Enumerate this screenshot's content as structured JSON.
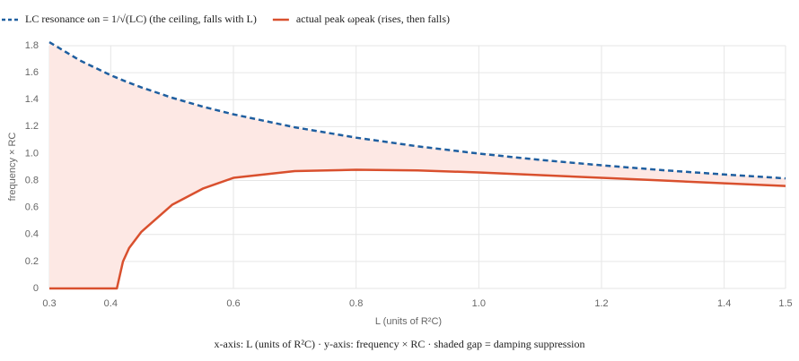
{
  "chart_data": {
    "type": "line",
    "x_label": "L (units of R²C)",
    "y_label": "frequency × RC",
    "caption": "x-axis: L (units of R²C)  ·  y-axis: frequency × RC  ·  shaded gap = damping suppression",
    "x": [
      0.3,
      0.35,
      0.4,
      0.41,
      0.42,
      0.43,
      0.45,
      0.5,
      0.55,
      0.6,
      0.7,
      0.8,
      0.9,
      1.0,
      1.1,
      1.2,
      1.3,
      1.4,
      1.5
    ],
    "series": [
      {
        "name": "LC resonance ωn = 1/√(LC)  (the ceiling, falls with L)",
        "color": "#1f5fa0",
        "dashed": true,
        "values": [
          1.826,
          1.69,
          1.581,
          1.562,
          1.543,
          1.525,
          1.491,
          1.414,
          1.348,
          1.291,
          1.195,
          1.118,
          1.054,
          1.0,
          0.953,
          0.913,
          0.877,
          0.845,
          0.816
        ]
      },
      {
        "name": "actual peak ωpeak  (rises, then falls)",
        "color": "#d9502e",
        "dashed": false,
        "values": [
          0,
          0,
          0,
          0,
          0.2,
          0.3,
          0.42,
          0.62,
          0.74,
          0.82,
          0.87,
          0.88,
          0.875,
          0.86,
          0.84,
          0.82,
          0.8,
          0.78,
          0.76
        ]
      }
    ],
    "fill_color": "#fde8e4",
    "xlim": [
      0.3,
      1.5
    ],
    "xticks": [
      0.3,
      0.4,
      0.6,
      0.8,
      {
        "value": 1,
        "label": "1.0"
      },
      1.2,
      1.4,
      1.5
    ],
    "ylim": [
      0,
      1.8
    ],
    "yticks": [
      0,
      0.2,
      0.4,
      0.6,
      0.8,
      {
        "value": 1,
        "label": "1.0"
      },
      1.2,
      1.4,
      1.6,
      1.8
    ],
    "grid": true
  }
}
